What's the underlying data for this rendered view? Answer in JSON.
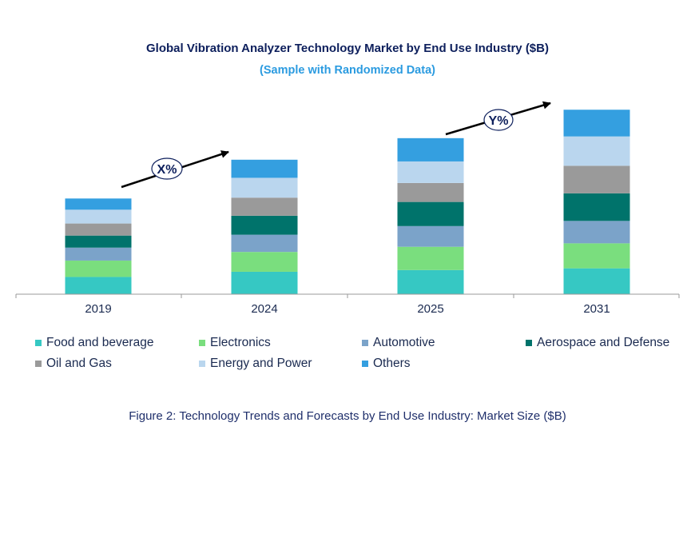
{
  "chart_data": {
    "type": "bar",
    "stacked": true,
    "title": "Global Vibration Analyzer Technology Market by End Use Industry ($B)",
    "subtitle": "(Sample with Randomized Data)",
    "categories": [
      "2019",
      "2024",
      "2025",
      "2031"
    ],
    "series": [
      {
        "name": "Food and beverage",
        "color": "#36c8c3",
        "values": [
          20,
          26,
          28,
          30
        ]
      },
      {
        "name": "Electronics",
        "color": "#7ade7e",
        "values": [
          19,
          23,
          27,
          29
        ]
      },
      {
        "name": "Automotive",
        "color": "#7ba3c9",
        "values": [
          15,
          20,
          24,
          26
        ]
      },
      {
        "name": "Aerospace and Defense",
        "color": "#00736b",
        "values": [
          14,
          22,
          28,
          32
        ]
      },
      {
        "name": "Oil and Gas",
        "color": "#9a9a9a",
        "values": [
          14,
          21,
          22,
          32
        ]
      },
      {
        "name": "Energy and Power",
        "color": "#bad6ee",
        "values": [
          16,
          23,
          25,
          34
        ]
      },
      {
        "name": "Others",
        "color": "#349fe0",
        "values": [
          13,
          21,
          27,
          31
        ]
      }
    ],
    "annotations": [
      {
        "text": "X%",
        "between": [
          "2019",
          "2024"
        ]
      },
      {
        "text": "Y%",
        "between": [
          "2025",
          "2031"
        ]
      }
    ],
    "xlabel": "",
    "ylabel": "",
    "ylim": [
      0,
      230
    ],
    "grid": false,
    "legend_position": "bottom"
  },
  "caption": "Figure 2: Technology  Trends  and Forecasts by End Use Industry:  Market Size ($B)"
}
